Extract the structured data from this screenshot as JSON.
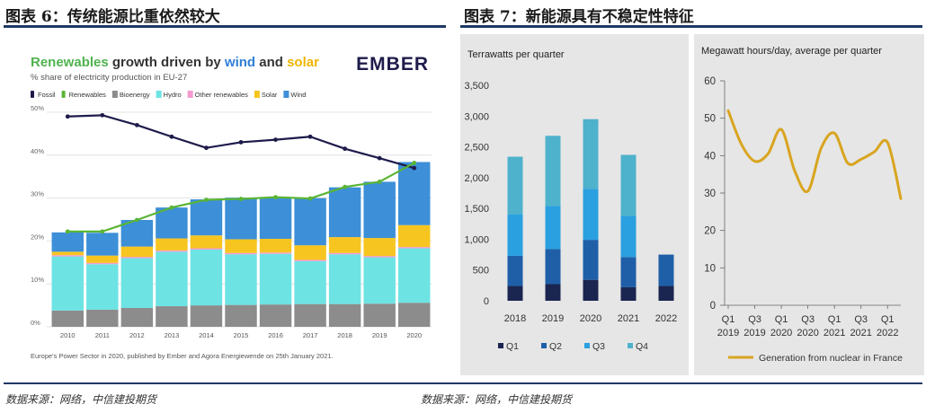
{
  "figures": {
    "left_title": "图表 6：传统能源比重依然较大",
    "right_title": "图表 7：新能源具有不稳定性特征",
    "left_source": "数据来源：网络，中信建投期货",
    "right_source": "数据来源：网络，中信建投期货"
  },
  "chart_data": [
    {
      "type": "stacked-bar-line",
      "title_parts": [
        "Renewables",
        " growth driven by ",
        "wind",
        " and ",
        "solar"
      ],
      "subtitle": "% share of electricity production in EU-27",
      "brand": "EMBER",
      "footnote": "Europe's Power Sector in 2020, published by Ember and Agora Energiewende on 25th January 2021.",
      "categories": [
        "2010",
        "2011",
        "2012",
        "2013",
        "2014",
        "2015",
        "2016",
        "2017",
        "2018",
        "2019",
        "2020"
      ],
      "ylim": [
        0,
        50
      ],
      "yticks": [
        "0%",
        "10%",
        "20%",
        "30%",
        "40%",
        "50%"
      ],
      "legend": [
        {
          "name": "Fossil",
          "color": "#1e1b4b",
          "kind": "line"
        },
        {
          "name": "Renewables",
          "color": "#5ab535",
          "kind": "line"
        },
        {
          "name": "Bioenergy",
          "color": "#8c8c8c",
          "kind": "bar"
        },
        {
          "name": "Hydro",
          "color": "#6de3e3",
          "kind": "bar"
        },
        {
          "name": "Other renewables",
          "color": "#f39bd0",
          "kind": "bar"
        },
        {
          "name": "Solar",
          "color": "#f7c520",
          "kind": "bar"
        },
        {
          "name": "Wind",
          "color": "#3d8fd8",
          "kind": "bar"
        }
      ],
      "bar_series": [
        {
          "name": "Bioenergy",
          "color": "#8c8c8c",
          "values": [
            3.8,
            4.0,
            4.4,
            4.8,
            5.0,
            5.1,
            5.2,
            5.3,
            5.3,
            5.4,
            5.6
          ]
        },
        {
          "name": "Hydro",
          "color": "#6de3e3",
          "values": [
            12.6,
            10.6,
            11.6,
            12.7,
            13.0,
            11.8,
            11.8,
            10.0,
            11.6,
            10.8,
            12.7
          ]
        },
        {
          "name": "Other renewables",
          "color": "#f39bd0",
          "values": [
            0.3,
            0.3,
            0.3,
            0.3,
            0.3,
            0.3,
            0.3,
            0.3,
            0.3,
            0.3,
            0.3
          ]
        },
        {
          "name": "Solar",
          "color": "#f7c520",
          "values": [
            0.8,
            1.7,
            2.4,
            2.8,
            3.0,
            3.2,
            3.2,
            3.4,
            3.7,
            4.2,
            5.1
          ]
        },
        {
          "name": "Wind",
          "color": "#3d8fd8",
          "values": [
            4.5,
            5.3,
            6.2,
            7.2,
            8.4,
            9.7,
            9.5,
            11.0,
            11.6,
            13.1,
            14.7
          ]
        }
      ],
      "line_series": [
        {
          "name": "Fossil",
          "color": "#1e1b4b",
          "values": [
            49.0,
            49.3,
            47.0,
            44.3,
            41.7,
            43.0,
            43.6,
            44.3,
            41.5,
            39.3,
            37.0
          ]
        },
        {
          "name": "Renewables",
          "color": "#5ab535",
          "values": [
            22.2,
            22.2,
            24.9,
            27.8,
            29.6,
            29.8,
            30.2,
            29.9,
            32.6,
            33.8,
            38.2
          ]
        }
      ]
    },
    {
      "type": "stacked-bar",
      "ylabel": "Terrawatts per quarter",
      "categories": [
        "2018",
        "2019",
        "2020",
        "2021",
        "2022"
      ],
      "ylim": [
        0,
        3500
      ],
      "yticks": [
        "0",
        "500",
        "1,000",
        "1,500",
        "2,000",
        "2,500",
        "3,000",
        "3,500"
      ],
      "series": [
        {
          "name": "Q1",
          "color": "#1a2550",
          "values": [
            240,
            270,
            340,
            220,
            240
          ]
        },
        {
          "name": "Q2",
          "color": "#1f5fa8",
          "values": [
            490,
            570,
            650,
            490,
            510
          ]
        },
        {
          "name": "Q3",
          "color": "#2aa0e0",
          "values": [
            670,
            700,
            830,
            670,
            0
          ]
        },
        {
          "name": "Q4",
          "color": "#4fb2cc",
          "values": [
            940,
            1140,
            1130,
            990,
            0
          ]
        }
      ]
    },
    {
      "type": "line",
      "ylabel": "Megawatt hours/day, average per quarter",
      "ylim": [
        0,
        60
      ],
      "yticks": [
        "0",
        "10",
        "20",
        "30",
        "40",
        "50",
        "60"
      ],
      "x_tick_labels": [
        [
          "Q1",
          "2019"
        ],
        [
          "Q3",
          "2019"
        ],
        [
          "Q1",
          "2020"
        ],
        [
          "Q3",
          "2020"
        ],
        [
          "Q1",
          "2021"
        ],
        [
          "Q3",
          "2021"
        ],
        [
          "Q1",
          "2022"
        ]
      ],
      "series": {
        "name": "Generation from nuclear in France",
        "color": "#d9a520",
        "values": [
          52,
          43,
          38.5,
          40.5,
          47,
          36,
          30.5,
          42,
          46,
          38,
          39,
          41,
          43.5,
          28.5
        ]
      }
    }
  ]
}
